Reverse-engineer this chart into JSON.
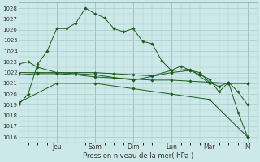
{
  "title": "",
  "xlabel": "Pression niveau de la mer( hPa )",
  "ylabel": "",
  "bg_color": "#cce8e8",
  "grid_color": "#aacccc",
  "line_color": "#1a5c1a",
  "ylim": [
    1015.5,
    1028.5
  ],
  "yticks": [
    1016,
    1017,
    1018,
    1019,
    1020,
    1021,
    1022,
    1023,
    1024,
    1025,
    1026,
    1027,
    1028
  ],
  "day_labels": [
    "Jeu",
    "Sam",
    "Dim",
    "Lun",
    "Mar",
    "M"
  ],
  "day_positions": [
    2.0,
    4.0,
    6.0,
    8.0,
    10.0,
    12.0
  ],
  "xlim": [
    0,
    12.5
  ],
  "lines": [
    {
      "x": [
        0.0,
        0.5,
        1.0,
        1.5,
        2.0,
        2.5,
        3.0,
        3.5,
        4.0,
        4.5,
        5.0,
        5.5,
        6.0,
        6.5,
        7.0,
        7.5,
        8.0,
        8.5,
        9.0,
        9.5,
        10.0,
        10.5,
        11.0,
        11.5,
        12.0
      ],
      "y": [
        1019.0,
        1020.0,
        1022.8,
        1024.0,
        1026.1,
        1026.1,
        1026.6,
        1028.0,
        1027.5,
        1027.1,
        1026.1,
        1025.8,
        1026.1,
        1024.9,
        1024.7,
        1023.1,
        1022.2,
        1022.6,
        1022.2,
        1022.0,
        1021.1,
        1020.7,
        1021.1,
        1020.2,
        1019.0
      ]
    },
    {
      "x": [
        0.0,
        1.0,
        2.0,
        3.0,
        4.0,
        5.0,
        6.0,
        7.0,
        8.0,
        9.0,
        10.0,
        11.0,
        12.0
      ],
      "y": [
        1022.0,
        1022.0,
        1022.0,
        1022.0,
        1022.0,
        1021.9,
        1021.8,
        1021.7,
        1022.2,
        1022.3,
        1021.0,
        1021.0,
        1021.0
      ]
    },
    {
      "x": [
        0.0,
        1.0,
        2.0,
        3.0,
        4.0,
        5.0,
        6.0,
        7.0,
        8.0,
        9.0,
        10.0,
        11.0,
        12.0
      ],
      "y": [
        1021.8,
        1021.9,
        1021.9,
        1021.8,
        1021.6,
        1021.5,
        1021.4,
        1021.3,
        1021.3,
        1021.2,
        1021.1,
        1021.0,
        1021.0
      ]
    },
    {
      "x": [
        0.0,
        2.0,
        4.0,
        6.0,
        8.0,
        10.0,
        12.0
      ],
      "y": [
        1019.2,
        1021.0,
        1021.0,
        1020.5,
        1020.0,
        1019.5,
        1016.0
      ]
    },
    {
      "x": [
        0.0,
        0.5,
        1.0,
        2.0,
        4.0,
        6.0,
        8.0,
        9.0,
        9.5,
        10.0,
        10.5,
        11.0,
        11.5,
        12.0
      ],
      "y": [
        1022.8,
        1023.0,
        1022.5,
        1022.0,
        1021.8,
        1021.3,
        1022.0,
        1022.2,
        1021.8,
        1021.4,
        1020.2,
        1021.1,
        1018.3,
        1016.0
      ]
    }
  ]
}
